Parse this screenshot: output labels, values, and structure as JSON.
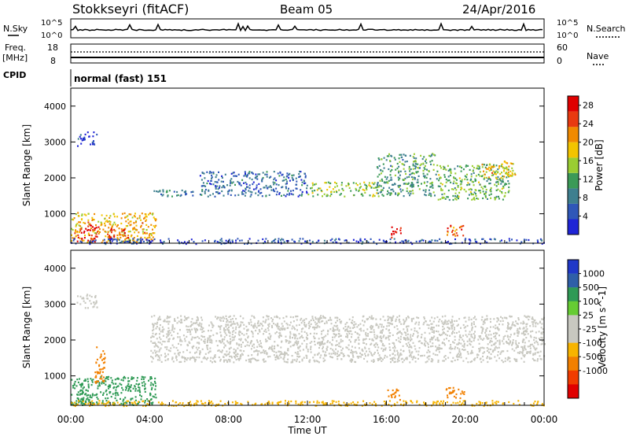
{
  "header": {
    "station": "Stokkseyri (fitACF)",
    "beam": "Beam 05",
    "date": "24/Apr/2016"
  },
  "strips": {
    "nsky_label": "N.Sky",
    "nsky_top": "10^5",
    "nsky_bottom": "10^0",
    "nsearch_label": "N.Search",
    "nsearch_top": "10^5",
    "nsearch_bottom": "10^0",
    "freq_label": "Freq.",
    "freq_unit": "[MHz]",
    "freq_top": "18",
    "freq_bottom": "8",
    "nave_label": "Nave",
    "nave_top": "60",
    "nave_bottom": "0",
    "cpid_label": "CPID",
    "cpid_text": "normal (fast) 151"
  },
  "colors": {
    "power": [
      "#1f24d6",
      "#2f57b8",
      "#3e7f8f",
      "#3b9a57",
      "#9acd32",
      "#f2c400",
      "#f08a00",
      "#e83a10",
      "#e00000"
    ],
    "velocity": [
      "#e00000",
      "#f03c00",
      "#f28000",
      "#f7b400",
      "#c8c8c0",
      "#c8c8c0",
      "#66cc33",
      "#2f9a55",
      "#2f5fa8",
      "#2038c8"
    ],
    "ground_scatter": "#bdbdbd"
  },
  "chart_data": [
    {
      "type": "heatmap",
      "name": "power-panel",
      "ylabel": "Slant Range [km]",
      "y_ticks": [
        "1000",
        "2000",
        "3000",
        "4000"
      ],
      "ylim": [
        180,
        4500
      ],
      "colorbar_label": "Power [dB]",
      "colorbar_ticks": [
        "4",
        "8",
        "12",
        "16",
        "20",
        "24",
        "28"
      ],
      "colorbar_range": [
        0,
        30
      ],
      "bands": [
        {
          "t0": 0.0,
          "t1": 4.3,
          "r0": 200,
          "r1": 1050,
          "value": 20
        },
        {
          "t0": 0.3,
          "t1": 1.4,
          "r0": 240,
          "r1": 700,
          "value": 28
        },
        {
          "t0": 1.8,
          "t1": 2.9,
          "r0": 300,
          "r1": 650,
          "value": 25
        },
        {
          "t0": 4.0,
          "t1": 6.2,
          "r0": 1500,
          "r1": 1700,
          "value": 10
        },
        {
          "t0": 6.5,
          "t1": 12.0,
          "r0": 1500,
          "r1": 2200,
          "value": 8
        },
        {
          "t0": 12.0,
          "t1": 15.5,
          "r0": 1500,
          "r1": 1900,
          "value": 16
        },
        {
          "t0": 15.5,
          "t1": 18.5,
          "r0": 1500,
          "r1": 2700,
          "value": 12
        },
        {
          "t0": 18.5,
          "t1": 22.2,
          "r0": 1400,
          "r1": 2400,
          "value": 14
        },
        {
          "t0": 20.8,
          "t1": 22.5,
          "r0": 2000,
          "r1": 2500,
          "value": 20
        },
        {
          "t0": 16.0,
          "t1": 16.7,
          "r0": 350,
          "r1": 650,
          "value": 29
        },
        {
          "t0": 19.0,
          "t1": 20.0,
          "r0": 400,
          "r1": 700,
          "value": 24
        },
        {
          "t0": 0.3,
          "t1": 1.3,
          "r0": 2900,
          "r1": 3300,
          "value": 6
        },
        {
          "t0": 0.0,
          "t1": 24.0,
          "r0": 180,
          "r1": 330,
          "value": 6
        }
      ]
    },
    {
      "type": "heatmap",
      "name": "velocity-panel",
      "ylabel": "Slant Range [km]",
      "xlabel": "Time UT",
      "x_ticks": [
        "00:00",
        "04:00",
        "08:00",
        "12:00",
        "16:00",
        "20:00",
        "00:00"
      ],
      "xlim": [
        0,
        24
      ],
      "y_ticks": [
        "1000",
        "2000",
        "3000",
        "4000"
      ],
      "ylim": [
        180,
        4500
      ],
      "colorbar_label": "Velocity [m s^-1]",
      "colorbar_ticks": [
        "-1000",
        "-500",
        "-100",
        "-25",
        "25",
        "100",
        "500",
        "1000"
      ],
      "bands": [
        {
          "t0": 0.0,
          "t1": 4.3,
          "r0": 200,
          "r1": 1000,
          "value": 300
        },
        {
          "t0": 0.0,
          "t1": 1.0,
          "r0": 250,
          "r1": 550,
          "value": 150
        },
        {
          "t0": 4.0,
          "t1": 24.0,
          "r0": 1400,
          "r1": 2700,
          "value": 0
        },
        {
          "t0": 16.0,
          "t1": 16.7,
          "r0": 350,
          "r1": 650,
          "value": -300
        },
        {
          "t0": 19.0,
          "t1": 20.0,
          "r0": 400,
          "r1": 700,
          "value": -200
        },
        {
          "t0": 1.2,
          "t1": 1.7,
          "r0": 800,
          "r1": 1900,
          "value": -200
        },
        {
          "t0": 0.3,
          "t1": 1.3,
          "r0": 2900,
          "r1": 3300,
          "value": 0
        },
        {
          "t0": 0.0,
          "t1": 24.0,
          "r0": 180,
          "r1": 330,
          "value": -50
        }
      ]
    }
  ]
}
